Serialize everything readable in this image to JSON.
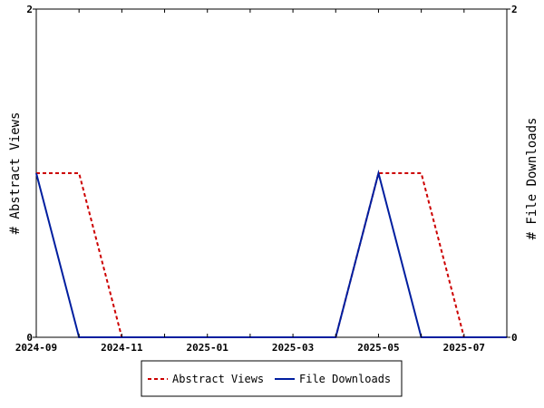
{
  "chart_data": {
    "type": "line",
    "x": [
      "2024-09",
      "2024-10",
      "2024-11",
      "2024-12",
      "2025-01",
      "2025-02",
      "2025-03",
      "2025-04",
      "2025-05",
      "2025-06",
      "2025-07",
      "2025-08"
    ],
    "x_tick_labels": [
      "2024-09",
      "2024-11",
      "2025-01",
      "2025-03",
      "2025-05",
      "2025-07"
    ],
    "series": [
      {
        "name": "Abstract Views",
        "axis": "left",
        "color": "#cc0000",
        "style": "dashed",
        "values": [
          1,
          1,
          0,
          0,
          0,
          0,
          0,
          0,
          1,
          1,
          0,
          0
        ]
      },
      {
        "name": "File Downloads",
        "axis": "right",
        "color": "#001e9f",
        "style": "solid",
        "values": [
          1,
          0,
          0,
          0,
          0,
          0,
          0,
          0,
          1,
          0,
          0,
          0
        ]
      }
    ],
    "ylabel": "# Abstract Views",
    "y2label": "# File Downloads",
    "ylim": [
      0,
      2
    ],
    "y2lim": [
      0,
      2
    ],
    "y_tick_labels": [
      "0",
      "2"
    ],
    "y2_tick_labels": [
      "0",
      "2"
    ],
    "grid": false,
    "legend_position": "bottom"
  }
}
